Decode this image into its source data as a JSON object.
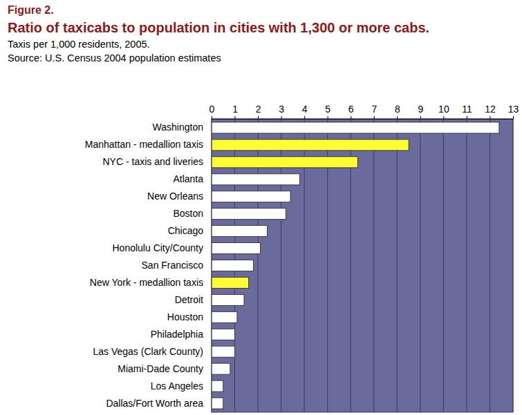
{
  "chart_data": {
    "type": "bar",
    "orientation": "horizontal",
    "figure": "Figure 2.",
    "title": "Ratio of taxicabs to population in cities with 1,300 or more cabs.",
    "subtitle": "Taxis per 1,000 residents, 2005.",
    "source": "Source: U.S. Census 2004 population estimates",
    "categories": [
      "Washington",
      "Manhattan - medallion taxis",
      "NYC - taxis and liveries",
      "Atlanta",
      "New Orleans",
      "Boston",
      "Chicago",
      "Honolulu City/County",
      "San Francisco",
      "New York - medallion taxis",
      "Detroit",
      "Houston",
      "Philadelphia",
      "Las Vegas (Clark County)",
      "Miami-Dade County",
      "Los Angeles",
      "Dallas/Fort Worth area"
    ],
    "values": [
      12.4,
      8.5,
      6.3,
      3.8,
      3.4,
      3.2,
      2.4,
      2.1,
      1.8,
      1.6,
      1.4,
      1.1,
      1.0,
      1.0,
      0.8,
      0.5,
      0.5
    ],
    "colors": [
      "#ffffff",
      "#ffff33",
      "#ffff33",
      "#ffffff",
      "#ffffff",
      "#ffffff",
      "#ffffff",
      "#ffffff",
      "#ffffff",
      "#ffff33",
      "#ffffff",
      "#ffffff",
      "#ffffff",
      "#ffffff",
      "#ffffff",
      "#ffffff",
      "#ffffff"
    ],
    "xlim": [
      0,
      13
    ],
    "xticks": [
      0,
      1,
      2,
      3,
      4,
      5,
      6,
      7,
      8,
      9,
      10,
      11,
      12,
      13
    ],
    "grid": true
  }
}
